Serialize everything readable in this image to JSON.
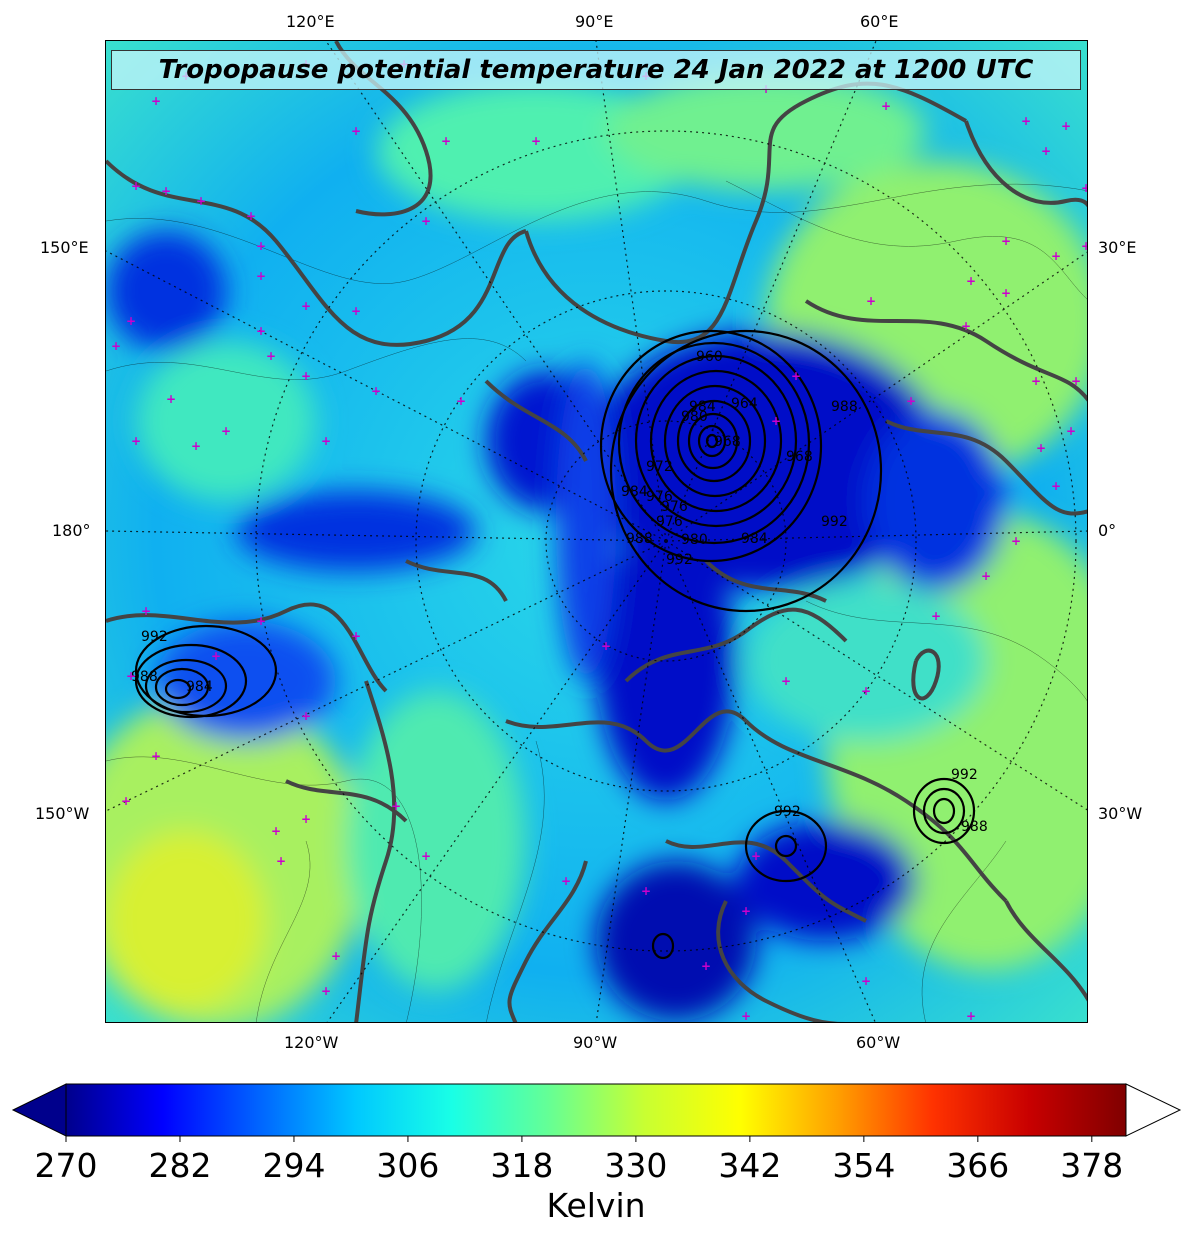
{
  "title": "Tropopause potential temperature 24 Jan 2022 at 1200 UTC",
  "lon_labels": {
    "top": [
      "120°E",
      "90°E",
      "60°E"
    ],
    "bottom": [
      "120°W",
      "90°W",
      "60°W"
    ],
    "left": [
      "150°E",
      "180°",
      "150°W"
    ],
    "right": [
      "30°E",
      "0°",
      "30°W"
    ]
  },
  "pressure_labels": [
    "992",
    "988",
    "984",
    "980",
    "976",
    "972",
    "968",
    "964",
    "960",
    "992",
    "988",
    "984",
    "992",
    "992",
    "988",
    "984",
    "980",
    "976",
    "984",
    "992",
    "976",
    "968",
    "988"
  ],
  "colorbar": {
    "unit_label": "Kelvin",
    "ticks": [
      "270",
      "282",
      "294",
      "306",
      "318",
      "330",
      "342",
      "354",
      "366",
      "378"
    ],
    "colors": [
      "#00008c",
      "#0000ff",
      "#0064ff",
      "#00c8ff",
      "#19ffe6",
      "#64ff96",
      "#c8ff32",
      "#ffff00",
      "#ffa000",
      "#ff3200",
      "#c80000",
      "#800000"
    ]
  },
  "colors": {
    "coast": "#444444",
    "marker": "#cc00cc",
    "contour": "#000000"
  }
}
